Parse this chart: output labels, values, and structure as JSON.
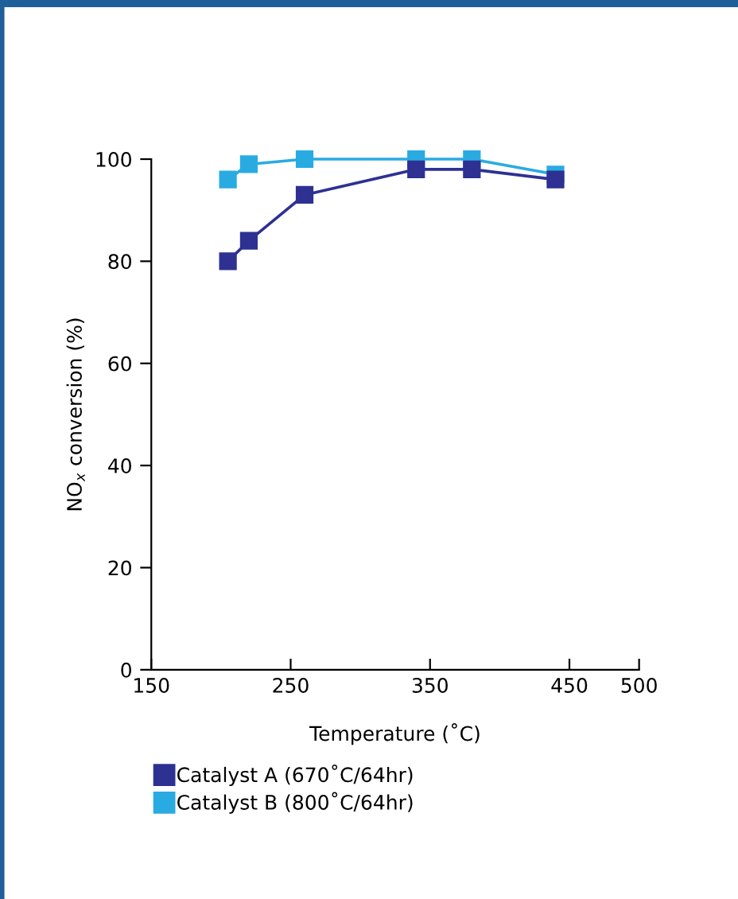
{
  "chart_data": {
    "type": "line",
    "xlabel": "Temperature (˚C)",
    "ylabel": "NO$_{x}$ conversion (%)",
    "x": [
      205,
      220,
      260,
      340,
      380,
      440
    ],
    "series": [
      {
        "name": "Catalyst A (670˚C/64hr)",
        "color": "#2e3192",
        "values": [
          80,
          84,
          93,
          98,
          98,
          96
        ]
      },
      {
        "name": "Catalyst B (800˚C/64hr)",
        "color": "#29abe2",
        "values": [
          96,
          99,
          100,
          100,
          100,
          97
        ]
      }
    ],
    "xlim": [
      150,
      500
    ],
    "xticks": [
      150,
      250,
      350,
      450,
      500
    ],
    "ylim": [
      0,
      100
    ],
    "yticks": [
      0,
      20,
      40,
      60,
      80,
      100
    ],
    "grid": false,
    "legend": "bottom",
    "marker": "square",
    "line_style": "solid"
  }
}
